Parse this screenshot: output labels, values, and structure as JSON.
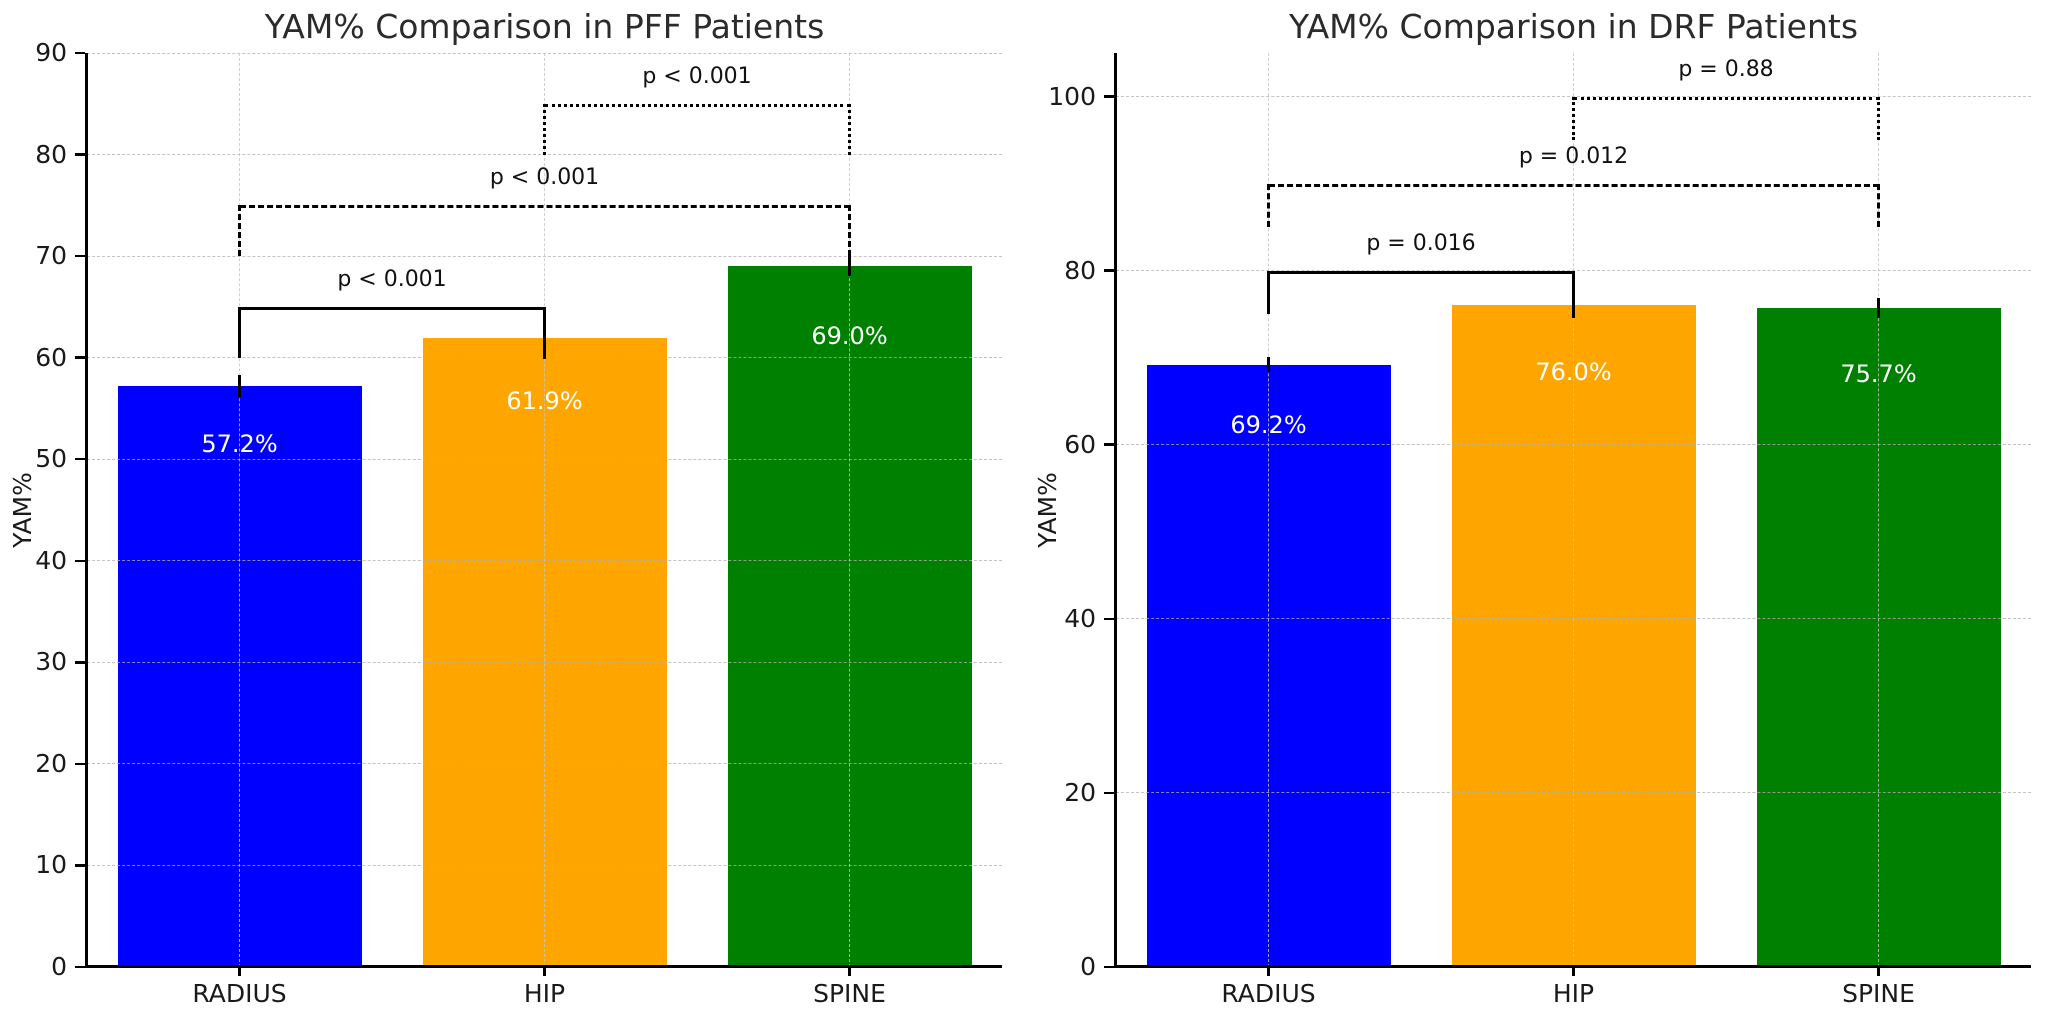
{
  "figure": {
    "background": "#ffffff"
  },
  "chart_data": [
    {
      "type": "bar",
      "title": "YAM% Comparison in PFF Patients",
      "ylabel": "YAM%",
      "xlabel": "",
      "categories": [
        "RADIUS",
        "HIP",
        "SPINE"
      ],
      "values": [
        57.2,
        61.9,
        69.0
      ],
      "value_labels": [
        "57.2%",
        "61.9%",
        "69.0%"
      ],
      "errors": [
        1.1,
        2.0,
        1.0
      ],
      "bar_colors": [
        "#0000ff",
        "#ffa500",
        "#008000"
      ],
      "ylim": [
        0,
        90
      ],
      "yticks": [
        0,
        10,
        20,
        30,
        40,
        50,
        60,
        70,
        80,
        90
      ],
      "grid": true,
      "legend": null,
      "significance_brackets": [
        {
          "from": "RADIUS",
          "to": "HIP",
          "label": "p < 0.001",
          "height": 65,
          "line_style": "solid"
        },
        {
          "from": "RADIUS",
          "to": "SPINE",
          "label": "p < 0.001",
          "height": 75,
          "line_style": "dashed"
        },
        {
          "from": "HIP",
          "to": "SPINE",
          "label": "p < 0.001",
          "height": 85,
          "line_style": "dotted"
        }
      ]
    },
    {
      "type": "bar",
      "title": "YAM% Comparison in DRF Patients",
      "ylabel": "YAM%",
      "xlabel": "",
      "categories": [
        "RADIUS",
        "HIP",
        "SPINE"
      ],
      "values": [
        69.2,
        76.0,
        75.7
      ],
      "value_labels": [
        "69.2%",
        "76.0%",
        "75.7%"
      ],
      "errors": [
        0.9,
        1.5,
        1.1
      ],
      "bar_colors": [
        "#0000ff",
        "#ffa500",
        "#008000"
      ],
      "ylim": [
        0,
        105
      ],
      "yticks": [
        0,
        20,
        40,
        60,
        80,
        100
      ],
      "grid": true,
      "legend": null,
      "significance_brackets": [
        {
          "from": "RADIUS",
          "to": "HIP",
          "label": "p = 0.016",
          "height": 80,
          "line_style": "solid"
        },
        {
          "from": "RADIUS",
          "to": "SPINE",
          "label": "p = 0.012",
          "height": 90,
          "line_style": "dashed"
        },
        {
          "from": "HIP",
          "to": "SPINE",
          "label": "p = 0.88",
          "height": 100,
          "line_style": "dotted"
        }
      ]
    }
  ]
}
